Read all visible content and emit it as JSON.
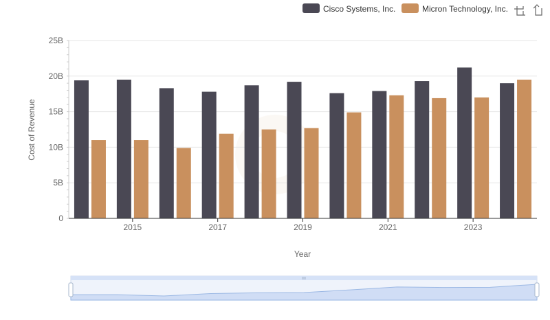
{
  "chart_data": {
    "type": "bar",
    "xlabel": "Year",
    "ylabel": "Cost of Revenue",
    "ylim": [
      0,
      25000000000
    ],
    "y_ticks": [
      "0",
      "5B",
      "10B",
      "15B",
      "20B",
      "25B"
    ],
    "categories": [
      "2014",
      "2015",
      "2016",
      "2017",
      "2018",
      "2019",
      "2020",
      "2021",
      "2022",
      "2023",
      "2024"
    ],
    "x_tick_labels": [
      "2015",
      "2017",
      "2019",
      "2021",
      "2023"
    ],
    "grid": true,
    "legend_position": "top-right",
    "series": [
      {
        "name": "Cisco Systems, Inc.",
        "color": "#4a4854",
        "values": [
          19400000000,
          19500000000,
          18300000000,
          17800000000,
          18700000000,
          19200000000,
          17600000000,
          17900000000,
          19300000000,
          21200000000,
          19000000000
        ]
      },
      {
        "name": "Micron Technology, Inc.",
        "color": "#c9905e",
        "values": [
          11000000000,
          11000000000,
          9900000000,
          11900000000,
          12500000000,
          12700000000,
          14900000000,
          17300000000,
          16900000000,
          17000000000,
          19500000000
        ]
      }
    ]
  },
  "toolbar": {
    "zoom_icon": "zoom-select-icon",
    "restore_icon": "restore-icon"
  },
  "slider": {
    "fill_color": "#d6e2f7",
    "line_color": "#8fb0e0"
  }
}
